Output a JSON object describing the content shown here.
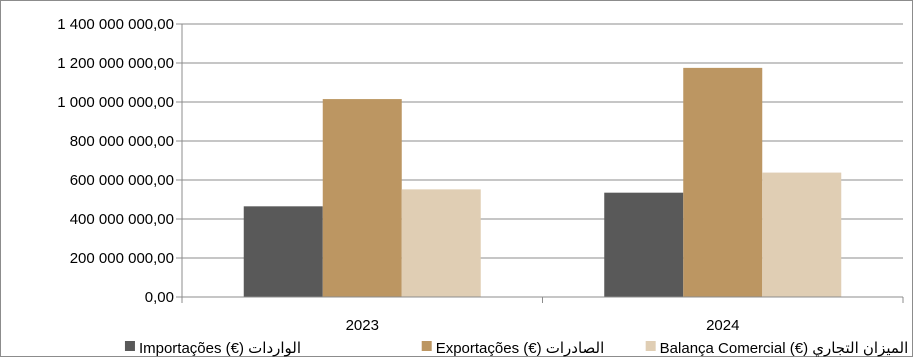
{
  "chart_data": {
    "type": "bar",
    "categories": [
      "2023",
      "2024"
    ],
    "series": [
      {
        "name": "Importações (€) الواردات",
        "values": [
          465000000,
          535000000
        ],
        "color": "#595959"
      },
      {
        "name": "Exportações (€) الصادرات",
        "values": [
          1015000000,
          1175000000
        ],
        "color": "#bc9662"
      },
      {
        "name": "Balança Comercial (€) الميزان التجاري",
        "values": [
          552000000,
          638000000
        ],
        "color": "#e0ceb4"
      }
    ],
    "ylim": [
      0,
      1400000000
    ],
    "yticks": [
      "0,00",
      "200 000 000,00",
      "400 000 000,00",
      "600 000 000,00",
      "800 000 000,00",
      "1 000 000 000,00",
      "1 200 000 000,00",
      "1 400 000 000,00"
    ],
    "grid": true,
    "legend_position": "bottom"
  }
}
